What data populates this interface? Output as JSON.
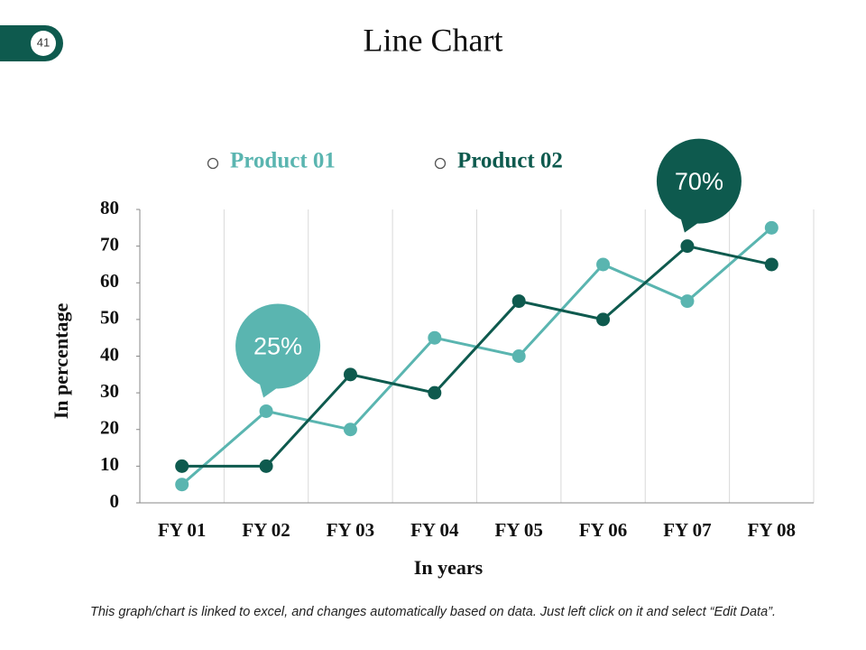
{
  "page_number": "41",
  "chart_data": {
    "type": "line",
    "title": "Line Chart",
    "categories": [
      "FY 01",
      "FY 02",
      "FY 03",
      "FY 04",
      "FY 05",
      "FY 06",
      "FY 07",
      "FY 08"
    ],
    "series": [
      {
        "name": "Product 01",
        "color": "#5ab5b0",
        "values": [
          5,
          25,
          20,
          45,
          40,
          65,
          55,
          75
        ],
        "value_labels": [
          null,
          "25%",
          null,
          null,
          null,
          null,
          null,
          null
        ]
      },
      {
        "name": "Product 02",
        "color": "#0e5a4e",
        "values": [
          10,
          10,
          35,
          30,
          55,
          50,
          70,
          65
        ],
        "value_labels": [
          null,
          null,
          null,
          null,
          null,
          null,
          "70%",
          null
        ]
      }
    ],
    "ylim": [
      0,
      80
    ],
    "yticks": [
      0,
      10,
      20,
      30,
      40,
      50,
      60,
      70,
      80
    ],
    "xlabel": "In years",
    "ylabel": "In percentage",
    "grid": true
  },
  "footer": "This graph/chart is linked to excel, and changes automatically based on data. Just left click on it and select “Edit Data”."
}
